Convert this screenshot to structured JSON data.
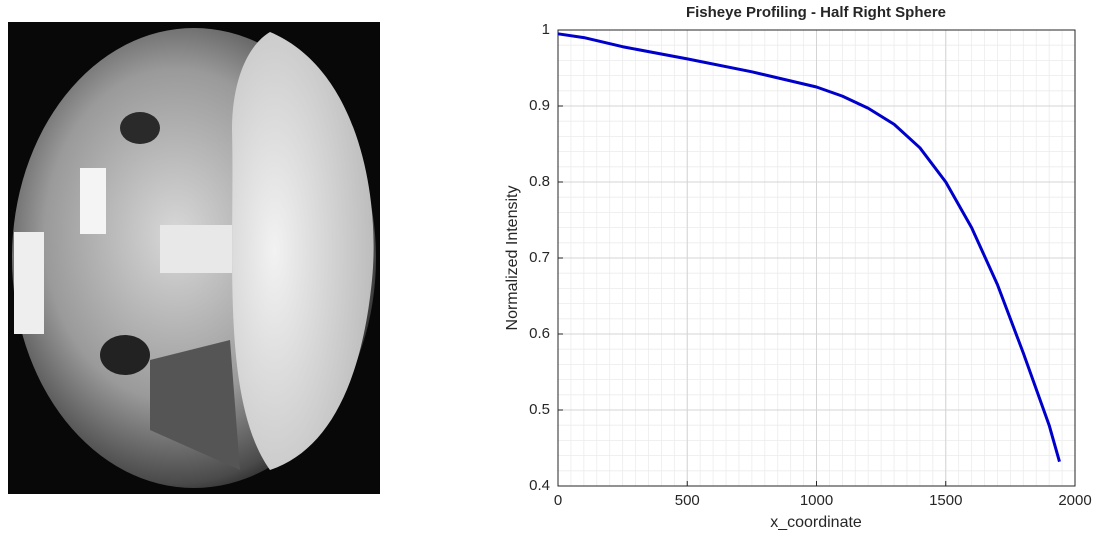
{
  "chart_data": {
    "type": "line",
    "title": "Fisheye Profiling - Half Right Sphere",
    "x_label": "x_coordinate",
    "y_label": "Normalized Intensity",
    "x": [
      0,
      100,
      250,
      500,
      750,
      1000,
      1100,
      1200,
      1300,
      1400,
      1500,
      1600,
      1700,
      1800,
      1900,
      1940
    ],
    "series": [
      {
        "name": "Normalized Intensity",
        "color": "#0000cc",
        "values": [
          0.995,
          0.99,
          0.978,
          0.962,
          0.945,
          0.925,
          0.913,
          0.897,
          0.876,
          0.845,
          0.8,
          0.74,
          0.665,
          0.575,
          0.48,
          0.432
        ]
      }
    ],
    "xlim": [
      0,
      2000
    ],
    "xticks": [
      0,
      500,
      1000,
      1500,
      2000
    ],
    "ylim": [
      0.4,
      1
    ],
    "yticks": [
      0.4,
      0.5,
      0.6,
      0.7,
      0.8,
      0.9,
      1
    ],
    "grid": true,
    "minor_grid": true
  }
}
